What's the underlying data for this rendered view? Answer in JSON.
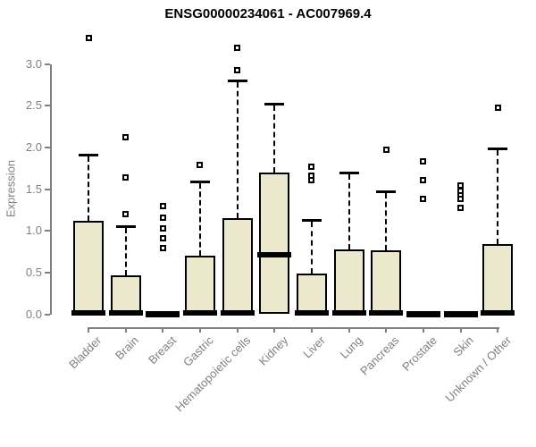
{
  "chart_data": {
    "type": "boxplot",
    "title": "ENSG00000234061 - AC007969.4",
    "ylabel": "Expression",
    "xlabel": "",
    "ylim": [
      0.0,
      3.35
    ],
    "yticks": [
      0.0,
      0.5,
      1.0,
      1.5,
      2.0,
      2.5,
      3.0
    ],
    "grid": "off",
    "legend": "none",
    "categories": [
      "Bladder",
      "Brain",
      "Breast",
      "Gastric",
      "Hematopoietic cells",
      "Kidney",
      "Liver",
      "Lung",
      "Pancreas",
      "Prostate",
      "Skin",
      "Unknown / Other"
    ],
    "series": [
      {
        "name": "Bladder",
        "q1": 0.0,
        "median": 0.02,
        "q3": 1.12,
        "whisker_low": 0.0,
        "whisker_high": 1.91,
        "outliers": [
          3.31
        ]
      },
      {
        "name": "Brain",
        "q1": 0.0,
        "median": 0.02,
        "q3": 0.47,
        "whisker_low": 0.0,
        "whisker_high": 1.06,
        "outliers": [
          2.12,
          1.64,
          1.2
        ]
      },
      {
        "name": "Breast",
        "q1": 0.0,
        "median": 0.02,
        "q3": 0.02,
        "whisker_low": 0.0,
        "whisker_high": 0.02,
        "outliers": [
          1.3,
          1.16,
          1.03,
          0.91,
          0.79
        ]
      },
      {
        "name": "Gastric",
        "q1": 0.0,
        "median": 0.02,
        "q3": 0.7,
        "whisker_low": 0.0,
        "whisker_high": 1.59,
        "outliers": [
          1.79
        ]
      },
      {
        "name": "Hematopoietic cells",
        "q1": 0.0,
        "median": 0.02,
        "q3": 1.15,
        "whisker_low": 0.0,
        "whisker_high": 2.8,
        "outliers": [
          3.2,
          2.93
        ]
      },
      {
        "name": "Kidney",
        "q1": 0.01,
        "median": 0.72,
        "q3": 1.7,
        "whisker_low": 0.0,
        "whisker_high": 2.53,
        "outliers": []
      },
      {
        "name": "Liver",
        "q1": 0.0,
        "median": 0.02,
        "q3": 0.49,
        "whisker_low": 0.0,
        "whisker_high": 1.13,
        "outliers": [
          1.77,
          1.66,
          1.61
        ]
      },
      {
        "name": "Lung",
        "q1": 0.0,
        "median": 0.02,
        "q3": 0.78,
        "whisker_low": 0.0,
        "whisker_high": 1.7,
        "outliers": []
      },
      {
        "name": "Pancreas",
        "q1": 0.0,
        "median": 0.02,
        "q3": 0.77,
        "whisker_low": 0.0,
        "whisker_high": 1.48,
        "outliers": [
          1.97
        ]
      },
      {
        "name": "Prostate",
        "q1": 0.0,
        "median": 0.02,
        "q3": 0.02,
        "whisker_low": 0.0,
        "whisker_high": 0.02,
        "outliers": [
          1.83,
          1.61,
          1.38
        ]
      },
      {
        "name": "Skin",
        "q1": 0.0,
        "median": 0.02,
        "q3": 0.02,
        "whisker_low": 0.0,
        "whisker_high": 0.02,
        "outliers": [
          1.54,
          1.48,
          1.43,
          1.38,
          1.28
        ]
      },
      {
        "name": "Unknown / Other",
        "q1": 0.0,
        "median": 0.02,
        "q3": 0.84,
        "whisker_low": 0.0,
        "whisker_high": 1.99,
        "outliers": [
          2.48
        ]
      }
    ],
    "colors": {
      "box_fill": "#ece8cd",
      "box_border": "#000000",
      "median": "#000000",
      "axis": "#808080",
      "tick_label": "#808080",
      "title": "#000000",
      "background": "#ffffff"
    }
  }
}
